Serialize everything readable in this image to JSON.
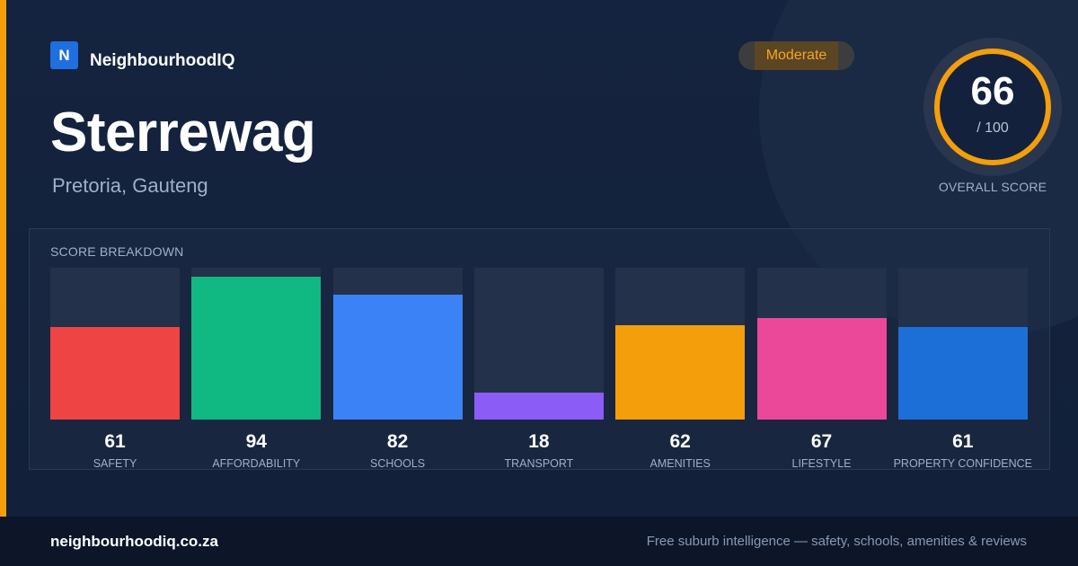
{
  "brand": {
    "logo_letter": "N",
    "name": "NeighbourhoodIQ"
  },
  "suburb": {
    "name": "Sterrewag",
    "location": "Pretoria, Gauteng"
  },
  "rating_badge": "Moderate",
  "overall": {
    "score": "66",
    "max": "/ 100",
    "label": "OVERALL SCORE",
    "value": 66,
    "ring_color": "#f59e0b"
  },
  "colors": {
    "accent": "#f59e0b",
    "background": "#13213c",
    "footer": "#0c1628"
  },
  "chart_data": {
    "type": "bar",
    "title": "SCORE BREAKDOWN",
    "ylim": [
      0,
      100
    ],
    "categories": [
      "SAFETY",
      "AFFORDABILITY",
      "SCHOOLS",
      "TRANSPORT",
      "AMENITIES",
      "LIFESTYLE",
      "PROPERTY CONFIDENCE"
    ],
    "values": [
      61,
      94,
      82,
      18,
      62,
      67,
      61
    ],
    "colors": [
      "#ef4444",
      "#10b981",
      "#3b82f6",
      "#8b5cf6",
      "#f59e0b",
      "#ec4899",
      "#1d6fd8"
    ],
    "grid": false,
    "legend": "none"
  },
  "footer": {
    "url": "neighbourhoodiq.co.za",
    "tagline": "Free suburb intelligence — safety, schools, amenities & reviews"
  }
}
